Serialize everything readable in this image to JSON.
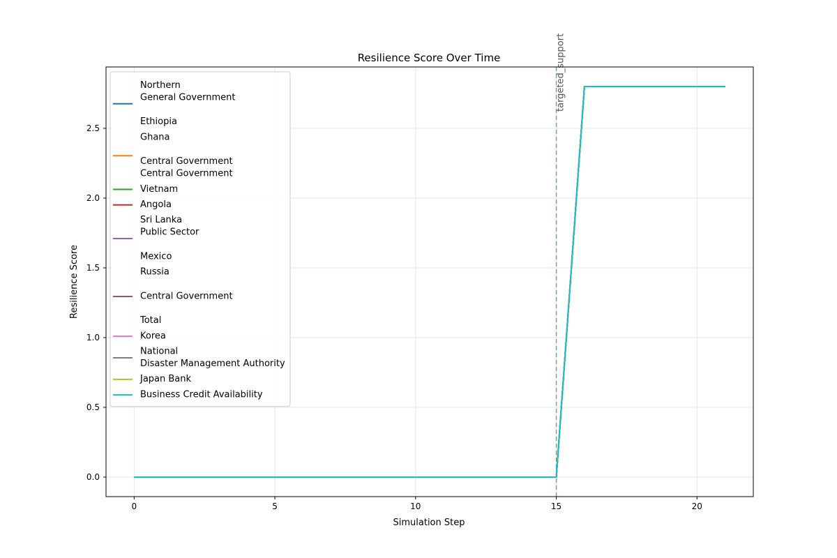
{
  "chart_data": {
    "type": "line",
    "title": "Resilience Score Over Time",
    "xlabel": "Simulation Step",
    "ylabel": "Resilience Score",
    "xlim": [
      -1,
      22
    ],
    "ylim": [
      -0.14,
      2.94
    ],
    "xticks": [
      0,
      5,
      10,
      15,
      20
    ],
    "yticks": [
      0.0,
      0.5,
      1.0,
      1.5,
      2.0,
      2.5
    ],
    "xtick_labels": [
      "0",
      "5",
      "10",
      "15",
      "20"
    ],
    "ytick_labels": [
      "0.0",
      "0.5",
      "1.0",
      "1.5",
      "2.0",
      "2.5"
    ],
    "grid": true,
    "legend_position": "upper-left",
    "x": [
      0,
      1,
      2,
      3,
      4,
      5,
      6,
      7,
      8,
      9,
      10,
      11,
      12,
      13,
      14,
      15,
      16,
      17,
      18,
      19,
      20,
      21
    ],
    "series": [
      {
        "name": "Northern\nGeneral Government\n\nEthiopia",
        "color": "#1f77b4",
        "values": [
          0,
          0,
          0,
          0,
          0,
          0,
          0,
          0,
          0,
          0,
          0,
          0,
          0,
          0,
          0,
          0,
          2.8,
          2.8,
          2.8,
          2.8,
          2.8,
          2.8
        ]
      },
      {
        "name": "Ghana\n\nCentral Government\nCentral Government",
        "color": "#ff7f0e",
        "values": [
          0,
          0,
          0,
          0,
          0,
          0,
          0,
          0,
          0,
          0,
          0,
          0,
          0,
          0,
          0,
          0,
          2.8,
          2.8,
          2.8,
          2.8,
          2.8,
          2.8
        ]
      },
      {
        "name": "Vietnam",
        "color": "#2ca02c",
        "values": [
          0,
          0,
          0,
          0,
          0,
          0,
          0,
          0,
          0,
          0,
          0,
          0,
          0,
          0,
          0,
          0,
          2.8,
          2.8,
          2.8,
          2.8,
          2.8,
          2.8
        ]
      },
      {
        "name": "Angola",
        "color": "#d62728",
        "values": [
          0,
          0,
          0,
          0,
          0,
          0,
          0,
          0,
          0,
          0,
          0,
          0,
          0,
          0,
          0,
          0,
          2.8,
          2.8,
          2.8,
          2.8,
          2.8,
          2.8
        ]
      },
      {
        "name": "Sri Lanka\nPublic Sector\n\nMexico",
        "color": "#9467bd",
        "values": [
          0,
          0,
          0,
          0,
          0,
          0,
          0,
          0,
          0,
          0,
          0,
          0,
          0,
          0,
          0,
          0,
          2.8,
          2.8,
          2.8,
          2.8,
          2.8,
          2.8
        ]
      },
      {
        "name": "Russia\n\nCentral Government\n\nTotal",
        "color": "#8c564b",
        "values": [
          0,
          0,
          0,
          0,
          0,
          0,
          0,
          0,
          0,
          0,
          0,
          0,
          0,
          0,
          0,
          0,
          2.8,
          2.8,
          2.8,
          2.8,
          2.8,
          2.8
        ]
      },
      {
        "name": "Korea",
        "color": "#e377c2",
        "values": [
          0,
          0,
          0,
          0,
          0,
          0,
          0,
          0,
          0,
          0,
          0,
          0,
          0,
          0,
          0,
          0,
          2.8,
          2.8,
          2.8,
          2.8,
          2.8,
          2.8
        ]
      },
      {
        "name": "National\nDisaster Management Authority",
        "color": "#7f7f7f",
        "values": [
          0,
          0,
          0,
          0,
          0,
          0,
          0,
          0,
          0,
          0,
          0,
          0,
          0,
          0,
          0,
          0,
          2.8,
          2.8,
          2.8,
          2.8,
          2.8,
          2.8
        ]
      },
      {
        "name": "Japan Bank",
        "color": "#bcbd22",
        "values": [
          0,
          0,
          0,
          0,
          0,
          0,
          0,
          0,
          0,
          0,
          0,
          0,
          0,
          0,
          0,
          0,
          2.8,
          2.8,
          2.8,
          2.8,
          2.8,
          2.8
        ]
      },
      {
        "name": "Business Credit Availability",
        "color": "#17becf",
        "values": [
          0,
          0,
          0,
          0,
          0,
          0,
          0,
          0,
          0,
          0,
          0,
          0,
          0,
          0,
          0,
          0,
          2.8,
          2.8,
          2.8,
          2.8,
          2.8,
          2.8
        ]
      }
    ],
    "annotations": [
      {
        "type": "vline",
        "x": 15,
        "label": "targeted_support",
        "color": "#2ca02c",
        "style": "dashed"
      }
    ]
  }
}
